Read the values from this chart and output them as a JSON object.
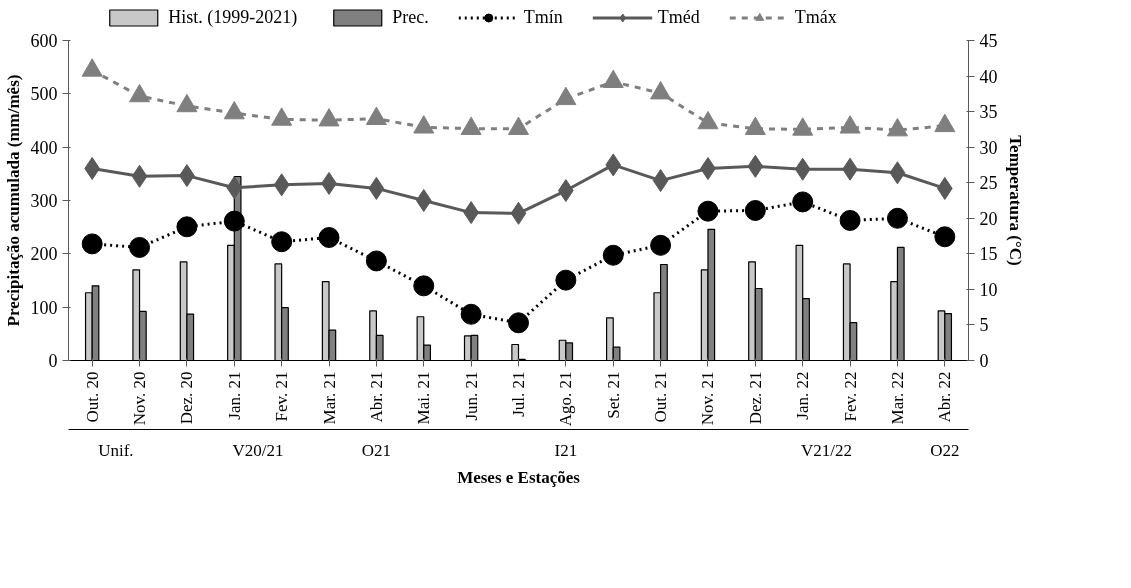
{
  "chart_data": {
    "type": "bar",
    "categories": [
      "Out. 20",
      "Nov. 20",
      "Dez. 20",
      "Jan. 21",
      "Fev. 21",
      "Mar. 21",
      "Abr. 21",
      "Mai. 21",
      "Jun. 21",
      "Jul. 21",
      "Ago. 21",
      "Set. 21",
      "Out. 21",
      "Nov. 21",
      "Dez. 21",
      "Jan. 22",
      "Fev. 22",
      "Mar. 22",
      "Abr. 22"
    ],
    "series": [
      {
        "name": "Hist. (1999-2021)",
        "type": "bar",
        "color": "#c8c8c8",
        "values": [
          127,
          170,
          185,
          216,
          181,
          148,
          93,
          82,
          46,
          30,
          38,
          80,
          127,
          170,
          185,
          216,
          181,
          148,
          93
        ]
      },
      {
        "name": "Prec.",
        "type": "bar",
        "color": "#808080",
        "values": [
          140,
          92,
          87,
          345,
          99,
          57,
          47,
          29,
          47,
          2,
          33,
          25,
          180,
          246,
          135,
          116,
          71,
          212,
          88
        ]
      },
      {
        "name": "Tmín",
        "type": "line",
        "axis": "y2",
        "color": "#000000",
        "marker": "circle",
        "line_style": "dotted",
        "values": [
          16.4,
          15.9,
          18.8,
          19.6,
          16.7,
          17.3,
          14.0,
          10.5,
          6.5,
          5.3,
          11.3,
          14.8,
          16.2,
          21.0,
          21.1,
          22.3,
          19.7,
          20.0,
          17.4
        ]
      },
      {
        "name": "Tméd",
        "type": "line",
        "axis": "y2",
        "color": "#595959",
        "marker": "diamond",
        "line_style": "solid",
        "values": [
          27.0,
          25.9,
          26.0,
          24.3,
          24.7,
          24.9,
          24.2,
          22.5,
          20.8,
          20.7,
          23.9,
          27.5,
          25.3,
          27.0,
          27.3,
          26.9,
          26.9,
          26.4,
          24.2
        ]
      },
      {
        "name": "Tmáx",
        "type": "line",
        "axis": "y2",
        "color": "#7f7f7f",
        "marker": "triangle",
        "line_style": "dashed",
        "values": [
          40.8,
          37.2,
          35.8,
          34.8,
          33.9,
          33.8,
          34.0,
          32.8,
          32.6,
          32.6,
          36.8,
          39.2,
          37.6,
          33.4,
          32.6,
          32.5,
          32.8,
          32.4,
          33.0
        ]
      }
    ],
    "ylim": [
      0,
      600
    ],
    "yticks": [
      0,
      100,
      200,
      300,
      400,
      500,
      600
    ],
    "y2lim": [
      0,
      45
    ],
    "y2ticks": [
      0,
      5,
      10,
      15,
      20,
      25,
      30,
      35,
      40,
      45
    ],
    "ylabel": "Precipitação acumulada (mm/mês)",
    "y2label": "Temperatura (°C)",
    "xlabel": "Meses e Estações",
    "annotations": [
      "Unif.",
      "V20/21",
      "O21",
      "I21",
      "V21/22",
      "O22"
    ],
    "grid": false,
    "legend": "top"
  }
}
